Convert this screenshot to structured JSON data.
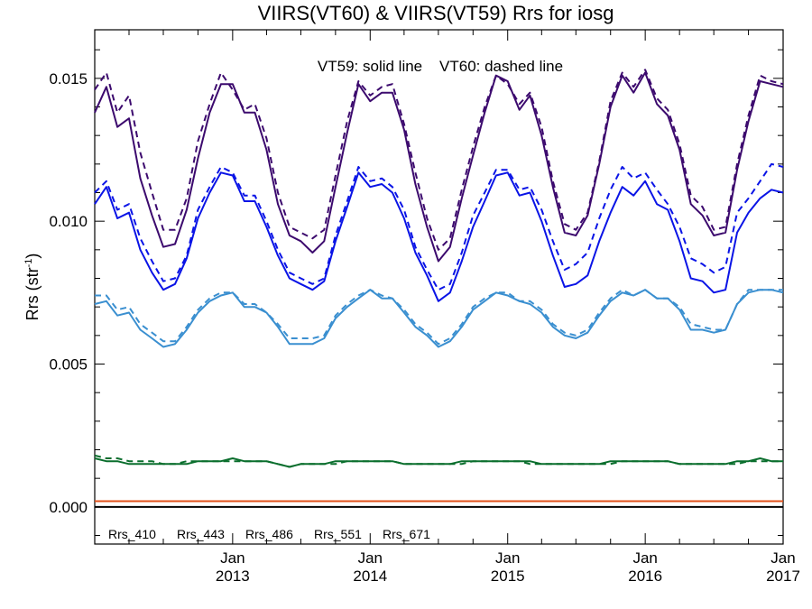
{
  "chart_data": {
    "type": "line",
    "title": "VIIRS(VT60) & VIIRS(VT59)  Rrs for iosg",
    "ylabel": "Rrs (str",
    "ylabel_sup": "-1",
    "ylabel_close": ")",
    "annotation": "VT59: solid line    VT60: dashed line",
    "ylim": [
      -0.0013,
      0.0167
    ],
    "xlim": [
      "2012-01-01",
      "2017-01-01"
    ],
    "grid": false,
    "y_ticks": [
      "0.000",
      "0.005",
      "0.010",
      "0.015"
    ],
    "y_tick_values": [
      0.0,
      0.005,
      0.01,
      0.015
    ],
    "x_tick_labels": [
      {
        "month": "Jan",
        "year": "2013",
        "date": "2013-01-01"
      },
      {
        "month": "Jan",
        "year": "2014",
        "date": "2014-01-01"
      },
      {
        "month": "Jan",
        "year": "2015",
        "date": "2015-01-01"
      },
      {
        "month": "Jan",
        "year": "2016",
        "date": "2016-01-01"
      },
      {
        "month": "Jan",
        "year": "2017",
        "date": "2017-01-01"
      }
    ],
    "legend_position": "bottom-left",
    "x": [
      "2012-01-01",
      "2012-02-01",
      "2012-03-01",
      "2012-04-01",
      "2012-05-01",
      "2012-06-01",
      "2012-07-01",
      "2012-08-01",
      "2012-09-01",
      "2012-10-01",
      "2012-11-01",
      "2012-12-01",
      "2013-01-01",
      "2013-02-01",
      "2013-03-01",
      "2013-04-01",
      "2013-05-01",
      "2013-06-01",
      "2013-07-01",
      "2013-08-01",
      "2013-09-01",
      "2013-10-01",
      "2013-11-01",
      "2013-12-01",
      "2014-01-01",
      "2014-02-01",
      "2014-03-01",
      "2014-04-01",
      "2014-05-01",
      "2014-06-01",
      "2014-07-01",
      "2014-08-01",
      "2014-09-01",
      "2014-10-01",
      "2014-11-01",
      "2014-12-01",
      "2015-01-01",
      "2015-02-01",
      "2015-03-01",
      "2015-04-01",
      "2015-05-01",
      "2015-06-01",
      "2015-07-01",
      "2015-08-01",
      "2015-09-01",
      "2015-10-01",
      "2015-11-01",
      "2015-12-01",
      "2016-01-01",
      "2016-02-01",
      "2016-03-01",
      "2016-04-01",
      "2016-05-01",
      "2016-06-01",
      "2016-07-01",
      "2016-08-01",
      "2016-09-01",
      "2016-10-01",
      "2016-11-01",
      "2016-12-01",
      "2017-01-01"
    ],
    "series": [
      {
        "name": "Rrs_410",
        "sensor": "VT59",
        "style": "solid",
        "color": "#3c0a6e",
        "values": [
          0.0138,
          0.0147,
          0.0133,
          0.0136,
          0.0115,
          0.0102,
          0.0091,
          0.0092,
          0.0104,
          0.0122,
          0.0138,
          0.0148,
          0.0148,
          0.0138,
          0.0138,
          0.0125,
          0.0106,
          0.0095,
          0.0093,
          0.0089,
          0.0093,
          0.0112,
          0.0131,
          0.0148,
          0.0142,
          0.0145,
          0.0145,
          0.0132,
          0.0113,
          0.0098,
          0.0086,
          0.0091,
          0.0108,
          0.0123,
          0.0138,
          0.0151,
          0.0149,
          0.0139,
          0.0144,
          0.013,
          0.0112,
          0.0096,
          0.0095,
          0.0102,
          0.012,
          0.014,
          0.0151,
          0.0145,
          0.0152,
          0.0141,
          0.0137,
          0.0125,
          0.0106,
          0.0102,
          0.0095,
          0.0096,
          0.0118,
          0.0135,
          0.0149,
          0.0148,
          0.0147
        ]
      },
      {
        "name": "Rrs_410",
        "sensor": "VT60",
        "style": "dashed",
        "color": "#3c0a6e",
        "values": [
          0.0146,
          0.0152,
          0.0138,
          0.0144,
          0.0124,
          0.011,
          0.0097,
          0.0097,
          0.0108,
          0.0128,
          0.0141,
          0.0152,
          0.0146,
          0.0139,
          0.0141,
          0.0129,
          0.011,
          0.0098,
          0.0096,
          0.0094,
          0.0097,
          0.0116,
          0.0135,
          0.0149,
          0.0144,
          0.0147,
          0.0148,
          0.0134,
          0.0117,
          0.0101,
          0.009,
          0.0094,
          0.0111,
          0.0126,
          0.014,
          0.0151,
          0.0148,
          0.0141,
          0.0145,
          0.0133,
          0.0114,
          0.0099,
          0.0097,
          0.0103,
          0.0121,
          0.0142,
          0.0152,
          0.0147,
          0.0153,
          0.0143,
          0.0139,
          0.0127,
          0.0109,
          0.0105,
          0.0097,
          0.0098,
          0.012,
          0.0137,
          0.0151,
          0.0149,
          0.0148
        ]
      },
      {
        "name": "Rrs_443",
        "sensor": "VT59",
        "style": "solid",
        "color": "#0a14e6",
        "values": [
          0.0106,
          0.0112,
          0.0101,
          0.0103,
          0.009,
          0.0082,
          0.0076,
          0.0078,
          0.0087,
          0.0101,
          0.011,
          0.0117,
          0.0116,
          0.0107,
          0.0107,
          0.0098,
          0.0088,
          0.008,
          0.0078,
          0.0076,
          0.0079,
          0.0093,
          0.0105,
          0.0117,
          0.0112,
          0.0113,
          0.011,
          0.0101,
          0.0089,
          0.0081,
          0.0072,
          0.0075,
          0.0086,
          0.0098,
          0.0107,
          0.0116,
          0.0117,
          0.0109,
          0.011,
          0.01,
          0.0088,
          0.0077,
          0.0078,
          0.0081,
          0.0093,
          0.0103,
          0.0112,
          0.0109,
          0.0114,
          0.0106,
          0.0104,
          0.0093,
          0.008,
          0.0079,
          0.0075,
          0.0076,
          0.0096,
          0.0103,
          0.0108,
          0.0111,
          0.011
        ]
      },
      {
        "name": "Rrs_443",
        "sensor": "VT60",
        "style": "dashed",
        "color": "#0a14e6",
        "values": [
          0.011,
          0.0114,
          0.0104,
          0.0106,
          0.0094,
          0.0086,
          0.0079,
          0.008,
          0.0088,
          0.0104,
          0.0112,
          0.0119,
          0.0117,
          0.0109,
          0.0109,
          0.01,
          0.009,
          0.0082,
          0.008,
          0.0078,
          0.008,
          0.0095,
          0.0107,
          0.0119,
          0.0114,
          0.0115,
          0.0112,
          0.0104,
          0.0091,
          0.0083,
          0.0076,
          0.0078,
          0.0089,
          0.0102,
          0.011,
          0.0118,
          0.0118,
          0.0111,
          0.0112,
          0.0104,
          0.0093,
          0.0083,
          0.0085,
          0.0089,
          0.0101,
          0.0111,
          0.0119,
          0.0115,
          0.0117,
          0.0111,
          0.0106,
          0.0098,
          0.0087,
          0.0085,
          0.0082,
          0.0084,
          0.0103,
          0.0108,
          0.0114,
          0.012,
          0.0119
        ]
      },
      {
        "name": "Rrs_486",
        "sensor": "VT59",
        "style": "solid",
        "color": "#3a8fd0",
        "values": [
          0.0071,
          0.0072,
          0.0067,
          0.0068,
          0.0062,
          0.0059,
          0.0056,
          0.0057,
          0.0062,
          0.0068,
          0.0072,
          0.0074,
          0.0075,
          0.007,
          0.007,
          0.0068,
          0.0063,
          0.0057,
          0.0057,
          0.0057,
          0.0059,
          0.0066,
          0.007,
          0.0073,
          0.0076,
          0.0073,
          0.0073,
          0.0068,
          0.0063,
          0.006,
          0.0056,
          0.0058,
          0.0063,
          0.0069,
          0.0072,
          0.0075,
          0.0074,
          0.0072,
          0.0071,
          0.0068,
          0.0063,
          0.006,
          0.0059,
          0.0061,
          0.0067,
          0.0072,
          0.0075,
          0.0074,
          0.0076,
          0.0073,
          0.0073,
          0.0069,
          0.0062,
          0.0062,
          0.0061,
          0.0062,
          0.0071,
          0.0075,
          0.0076,
          0.0076,
          0.0075
        ]
      },
      {
        "name": "Rrs_486",
        "sensor": "VT60",
        "style": "dashed",
        "color": "#3a8fd0",
        "values": [
          0.0074,
          0.0074,
          0.0069,
          0.007,
          0.0064,
          0.0061,
          0.0058,
          0.0058,
          0.0063,
          0.0069,
          0.0073,
          0.0075,
          0.0075,
          0.0071,
          0.0071,
          0.0068,
          0.0064,
          0.0059,
          0.0059,
          0.0059,
          0.006,
          0.0067,
          0.0071,
          0.0074,
          0.0076,
          0.0074,
          0.0073,
          0.0069,
          0.0064,
          0.0061,
          0.0057,
          0.0059,
          0.0064,
          0.007,
          0.0073,
          0.0075,
          0.0075,
          0.0072,
          0.0072,
          0.0069,
          0.0064,
          0.0061,
          0.006,
          0.0062,
          0.0068,
          0.0073,
          0.0076,
          0.0074,
          0.0076,
          0.0073,
          0.0073,
          0.007,
          0.0064,
          0.0063,
          0.0062,
          0.0062,
          0.0071,
          0.0076,
          0.0076,
          0.0076,
          0.0076
        ]
      },
      {
        "name": "Rrs_551",
        "sensor": "VT59",
        "style": "solid",
        "color": "#0a6e2d",
        "values": [
          0.0017,
          0.0016,
          0.0016,
          0.0015,
          0.0015,
          0.0015,
          0.0015,
          0.0015,
          0.0015,
          0.0016,
          0.0016,
          0.0016,
          0.0017,
          0.0016,
          0.0016,
          0.0016,
          0.0015,
          0.0014,
          0.0015,
          0.0015,
          0.0015,
          0.0016,
          0.0016,
          0.0016,
          0.0016,
          0.0016,
          0.0016,
          0.0015,
          0.0015,
          0.0015,
          0.0015,
          0.0015,
          0.0016,
          0.0016,
          0.0016,
          0.0016,
          0.0016,
          0.0016,
          0.0016,
          0.0015,
          0.0015,
          0.0015,
          0.0015,
          0.0015,
          0.0015,
          0.0016,
          0.0016,
          0.0016,
          0.0016,
          0.0016,
          0.0016,
          0.0015,
          0.0015,
          0.0015,
          0.0015,
          0.0015,
          0.0016,
          0.0016,
          0.0017,
          0.0016,
          0.0016
        ]
      },
      {
        "name": "Rrs_551",
        "sensor": "VT60",
        "style": "dashed",
        "color": "#0a6e2d",
        "values": [
          0.0018,
          0.0017,
          0.0017,
          0.0016,
          0.0016,
          0.0016,
          0.0015,
          0.0015,
          0.0016,
          0.0016,
          0.0016,
          0.0016,
          0.0016,
          0.0016,
          0.0016,
          0.0016,
          0.0015,
          0.0014,
          0.0015,
          0.0015,
          0.0015,
          0.0015,
          0.0016,
          0.0016,
          0.0016,
          0.0016,
          0.0016,
          0.0015,
          0.0015,
          0.0015,
          0.0015,
          0.0015,
          0.0015,
          0.0016,
          0.0016,
          0.0016,
          0.0016,
          0.0016,
          0.0015,
          0.0015,
          0.0015,
          0.0015,
          0.0015,
          0.0015,
          0.0015,
          0.0015,
          0.0016,
          0.0016,
          0.0016,
          0.0016,
          0.0016,
          0.0015,
          0.0015,
          0.0015,
          0.0015,
          0.0015,
          0.0015,
          0.0016,
          0.0016,
          0.0016,
          0.0016
        ]
      },
      {
        "name": "Rrs_671",
        "sensor": "VT59",
        "style": "solid",
        "color": "#e0501a",
        "values": [
          0.0002,
          0.0002,
          0.0002,
          0.0002,
          0.0002,
          0.0002,
          0.0002,
          0.0002,
          0.0002,
          0.0002,
          0.0002,
          0.0002,
          0.0002,
          0.0002,
          0.0002,
          0.0002,
          0.0002,
          0.0002,
          0.0002,
          0.0002,
          0.0002,
          0.0002,
          0.0002,
          0.0002,
          0.0002,
          0.0002,
          0.0002,
          0.0002,
          0.0002,
          0.0002,
          0.0002,
          0.0002,
          0.0002,
          0.0002,
          0.0002,
          0.0002,
          0.0002,
          0.0002,
          0.0002,
          0.0002,
          0.0002,
          0.0002,
          0.0002,
          0.0002,
          0.0002,
          0.0002,
          0.0002,
          0.0002,
          0.0002,
          0.0002,
          0.0002,
          0.0002,
          0.0002,
          0.0002,
          0.0002,
          0.0002,
          0.0002,
          0.0002,
          0.0002,
          0.0002,
          0.0002
        ]
      },
      {
        "name": "Rrs_671",
        "sensor": "VT60",
        "style": "dashed",
        "color": "#e0501a",
        "values": [
          0.0002,
          0.0002,
          0.0002,
          0.0002,
          0.0002,
          0.0002,
          0.0002,
          0.0002,
          0.0002,
          0.0002,
          0.0002,
          0.0002,
          0.0002,
          0.0002,
          0.0002,
          0.0002,
          0.0002,
          0.0002,
          0.0002,
          0.0002,
          0.0002,
          0.0002,
          0.0002,
          0.0002,
          0.0002,
          0.0002,
          0.0002,
          0.0002,
          0.0002,
          0.0002,
          0.0002,
          0.0002,
          0.0002,
          0.0002,
          0.0002,
          0.0002,
          0.0002,
          0.0002,
          0.0002,
          0.0002,
          0.0002,
          0.0002,
          0.0002,
          0.0002,
          0.0002,
          0.0002,
          0.0002,
          0.0002,
          0.0002,
          0.0002,
          0.0002,
          0.0002,
          0.0002,
          0.0002,
          0.0002,
          0.0002,
          0.0002,
          0.0002,
          0.0002,
          0.0002,
          0.0002
        ]
      }
    ],
    "legend": [
      {
        "label": "Rrs_410",
        "color": "#3c0a6e"
      },
      {
        "label": "Rrs_443",
        "color": "#0a14e6"
      },
      {
        "label": "Rrs_486",
        "color": "#3a8fd0"
      },
      {
        "label": "Rrs_551",
        "color": "#0a6e2d"
      },
      {
        "label": "Rrs_671",
        "color": "#e0501a"
      }
    ],
    "reference_line": {
      "y": 0.0,
      "color": "#000000"
    }
  }
}
